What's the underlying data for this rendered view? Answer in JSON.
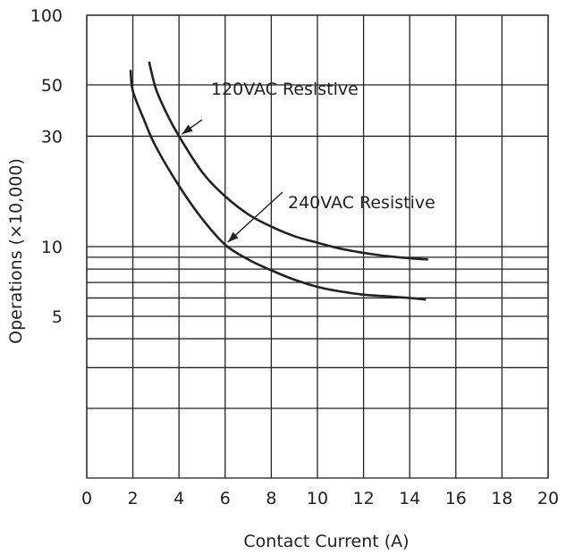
{
  "chart_data": {
    "type": "line",
    "xlabel": "Contact Current (A)",
    "ylabel": "Operations (×10,000)",
    "xlim": [
      0,
      20
    ],
    "ylim": [
      1,
      100
    ],
    "y_scale": "log",
    "grid": true,
    "x_ticks": [
      "0",
      "2",
      "4",
      "6",
      "8",
      "10",
      "12",
      "14",
      "16",
      "18",
      "20"
    ],
    "y_ticks": [
      {
        "value": 100,
        "label": "100"
      },
      {
        "value": 50,
        "label": "50"
      },
      {
        "value": 30,
        "label": "30"
      },
      {
        "value": 10,
        "label": "10"
      },
      {
        "value": 5,
        "label": "5"
      }
    ],
    "y_gridlines": [
      100,
      50,
      30,
      10,
      9,
      8,
      7,
      6,
      5,
      4,
      3,
      2
    ],
    "series": [
      {
        "name": "120VAC Resistive",
        "x": [
          2.7,
          3.0,
          3.5,
          4.0,
          5.0,
          6.0,
          7.0,
          8.0,
          9.0,
          10.0,
          11.0,
          12.0,
          13.0,
          14.0,
          14.8
        ],
        "y": [
          63,
          48,
          37,
          30,
          21,
          16.5,
          13.8,
          12.2,
          11.1,
          10.4,
          9.8,
          9.4,
          9.1,
          8.9,
          8.8
        ]
      },
      {
        "name": "240VAC Resistive",
        "x": [
          1.9,
          2.0,
          2.5,
          3.0,
          4.0,
          5.0,
          6.0,
          7.0,
          8.0,
          9.0,
          10.0,
          11.0,
          12.0,
          13.0,
          14.0,
          14.7
        ],
        "y": [
          58,
          47,
          35,
          27,
          18.3,
          13.2,
          10.2,
          8.8,
          7.9,
          7.2,
          6.7,
          6.4,
          6.2,
          6.1,
          6.0,
          5.9
        ]
      }
    ],
    "annotations": [
      {
        "text": "120VAC Resistive",
        "series": 0,
        "x": 4.0,
        "y": 30
      },
      {
        "text": "240VAC Resistive",
        "series": 1,
        "x": 6.0,
        "y": 10.2
      }
    ]
  }
}
